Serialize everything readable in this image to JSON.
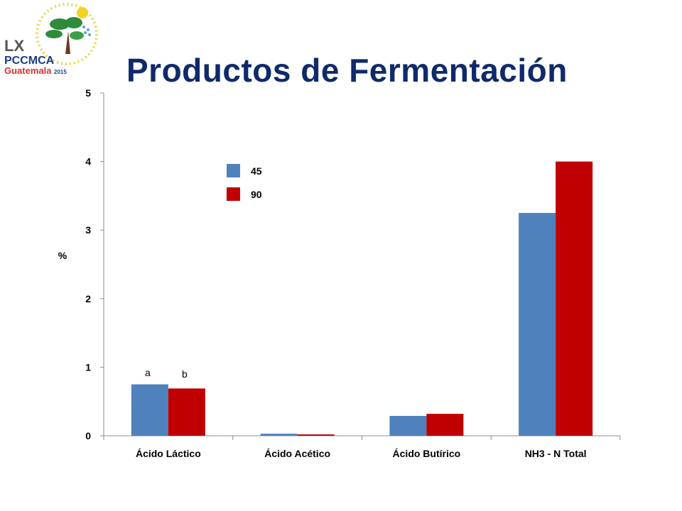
{
  "header": {
    "title": "Productos de Fermentación",
    "logo_text": "LX PCCMCA Guatemala 2015"
  },
  "colors": {
    "title": "#0f2a6b",
    "series_45": "#4f81bd",
    "series_90": "#c00000"
  },
  "chart_data": {
    "type": "bar",
    "title": "",
    "xlabel": "",
    "ylabel": "%",
    "ylim": [
      0,
      5
    ],
    "yticks": [
      "0",
      "1",
      "2",
      "3",
      "4",
      "5"
    ],
    "categories": [
      "Ácido Láctico",
      "Ácido Acético",
      "Ácido Butírico",
      "NH3 - N Total"
    ],
    "series": [
      {
        "name": "45",
        "color": "#4f81bd",
        "values": [
          0.75,
          0.03,
          0.29,
          3.25
        ]
      },
      {
        "name": "90",
        "color": "#c00000",
        "values": [
          0.69,
          0.02,
          0.32,
          4.0
        ]
      }
    ],
    "legend_position": "upper-left",
    "grid": false,
    "annotations": [
      {
        "text": "a",
        "category": "Ácido Láctico",
        "series": "45",
        "value": 0.85
      },
      {
        "text": "b",
        "category": "Ácido Láctico",
        "series": "90",
        "value": 0.83
      }
    ]
  }
}
